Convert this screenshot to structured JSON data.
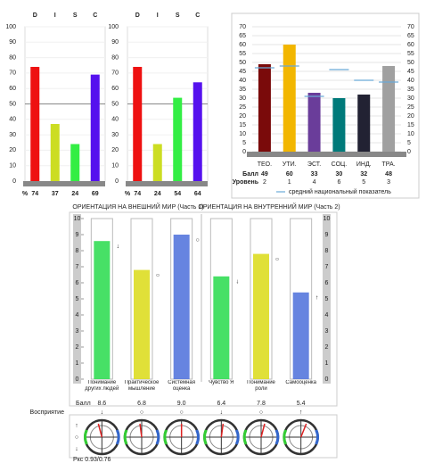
{
  "chart_data": [
    {
      "type": "bar",
      "categories": [
        "D",
        "I",
        "S",
        "C"
      ],
      "values": [
        74,
        37,
        24,
        69
      ],
      "colors": [
        "#ee1111",
        "#ccdd22",
        "#33ee44",
        "#5511ee"
      ],
      "value_row_label": "%",
      "ylim": [
        0,
        100
      ],
      "yticks": [
        0,
        10,
        20,
        30,
        40,
        50,
        60,
        70,
        80,
        90,
        100
      ]
    },
    {
      "type": "bar",
      "categories": [
        "D",
        "I",
        "S",
        "C"
      ],
      "values": [
        74,
        24,
        54,
        64
      ],
      "colors": [
        "#ee1111",
        "#ccdd22",
        "#33ee44",
        "#5511ee"
      ],
      "value_row_label": "%",
      "ylim": [
        0,
        100
      ],
      "yticks": [
        0,
        10,
        20,
        30,
        40,
        50,
        60,
        70,
        80,
        90,
        100
      ]
    },
    {
      "type": "bar",
      "categories": [
        "ТЕО.",
        "УТИ.",
        "ЭСТ.",
        "СОЦ.",
        "ИНД.",
        "ТРА."
      ],
      "values": [
        49,
        60,
        33,
        30,
        32,
        48
      ],
      "levels": [
        2,
        1,
        4,
        6,
        5,
        3
      ],
      "national_average": [
        47,
        48,
        31,
        46,
        40,
        39
      ],
      "colors": [
        "#7a0a0a",
        "#f2b600",
        "#6a3d9a",
        "#007a7a",
        "#222233",
        "#a0a0a0"
      ],
      "score_label": "Балл",
      "level_label": "Уровень",
      "national_average_label": "средний национальный показатель",
      "ylim": [
        0,
        70
      ],
      "yticks": [
        0,
        5,
        10,
        15,
        20,
        25,
        30,
        35,
        40,
        45,
        50,
        55,
        60,
        65,
        70
      ]
    },
    {
      "type": "bar",
      "titles": [
        "ОРИЕНТАЦИЯ НА ВНЕШНИЙ МИР (Часть 1)",
        "ОРИЕНТАЦИЯ НА ВНУТРЕННИЙ МИР (Часть 2)"
      ],
      "categories": [
        "Понимание других людей",
        "Практическое мышление",
        "Системная оценка",
        "Чувство Я",
        "Понимание роли",
        "Самооценка"
      ],
      "values": [
        8.6,
        6.8,
        9.0,
        6.4,
        7.8,
        5.4
      ],
      "value_labels": [
        "8.6",
        "6.8",
        "9.0",
        "6.4",
        "7.8",
        "5.4"
      ],
      "colors": [
        "#33dd55",
        "#dddd22",
        "#5577dd",
        "#33dd55",
        "#dddd22",
        "#5577dd"
      ],
      "perception": [
        "↓",
        "○",
        "○",
        "↓",
        "○",
        "↑"
      ],
      "score_label": "Балл",
      "perception_label": "Восприятие",
      "side_symbols": [
        "↑",
        "○",
        "↓"
      ],
      "footnote": "Ркс 0.93/0.76",
      "ylim": [
        0,
        10
      ],
      "yticks": [
        0,
        1,
        2,
        3,
        4,
        5,
        6,
        7,
        8,
        9,
        10
      ]
    }
  ]
}
